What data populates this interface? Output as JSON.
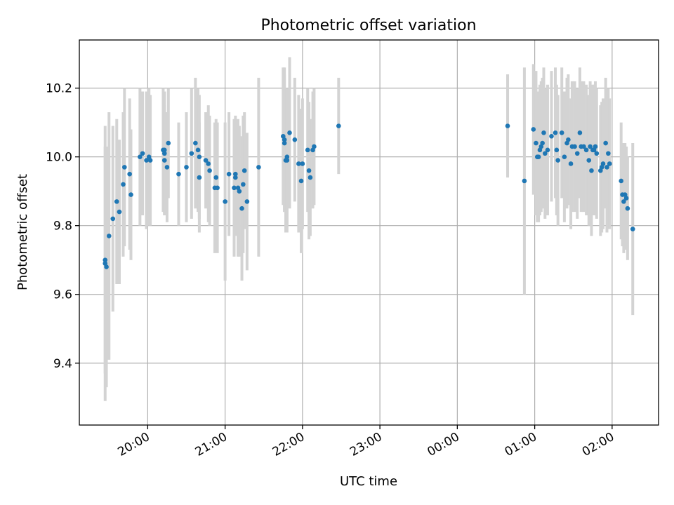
{
  "chart_data": {
    "type": "scatter",
    "title": "Photometric offset variation",
    "xlabel": "UTC time",
    "ylabel": "Photometric offset",
    "x_unit": "UTC",
    "xlim": [
      "19:07",
      "02:36"
    ],
    "ylim": [
      9.22,
      10.34
    ],
    "x_ticks": [
      "20:00",
      "21:00",
      "22:00",
      "23:00",
      "00:00",
      "01:00",
      "02:00"
    ],
    "y_ticks": [
      9.4,
      9.6,
      9.8,
      10.0,
      10.2
    ],
    "grid": true,
    "colors": {
      "marker": "#1f77b4",
      "errorbar": "#d3d3d3"
    },
    "series": [
      {
        "points": [
          {
            "t": "19:27",
            "y": 9.69,
            "err": 0.4
          },
          {
            "t": "19:27",
            "y": 9.7,
            "err": 0.33
          },
          {
            "t": "19:28",
            "y": 9.68,
            "err": 0.35
          },
          {
            "t": "19:30",
            "y": 9.77,
            "err": 0.36
          },
          {
            "t": "19:33",
            "y": 9.82,
            "err": 0.27
          },
          {
            "t": "19:36",
            "y": 9.87,
            "err": 0.24
          },
          {
            "t": "19:38",
            "y": 9.84,
            "err": 0.21
          },
          {
            "t": "19:41",
            "y": 9.92,
            "err": 0.21
          },
          {
            "t": "19:42",
            "y": 9.97,
            "err": 0.23
          },
          {
            "t": "19:46",
            "y": 9.95,
            "err": 0.22
          },
          {
            "t": "19:47",
            "y": 9.89,
            "err": 0.19
          },
          {
            "t": "19:54",
            "y": 10.0,
            "err": 0.2
          },
          {
            "t": "19:56",
            "y": 10.01,
            "err": 0.18
          },
          {
            "t": "19:59",
            "y": 9.99,
            "err": 0.2
          },
          {
            "t": "20:01",
            "y": 10.0,
            "err": 0.2
          },
          {
            "t": "20:02",
            "y": 9.99,
            "err": 0.19
          },
          {
            "t": "20:12",
            "y": 10.02,
            "err": 0.18
          },
          {
            "t": "20:13",
            "y": 9.99,
            "err": 0.16
          },
          {
            "t": "20:13",
            "y": 10.02,
            "err": 0.17
          },
          {
            "t": "20:13",
            "y": 10.01,
            "err": 0.18
          },
          {
            "t": "20:15",
            "y": 9.97,
            "err": 0.16
          },
          {
            "t": "20:16",
            "y": 10.04,
            "err": 0.16
          },
          {
            "t": "20:24",
            "y": 9.95,
            "err": 0.15
          },
          {
            "t": "20:30",
            "y": 9.97,
            "err": 0.16
          },
          {
            "t": "20:34",
            "y": 10.01,
            "err": 0.19
          },
          {
            "t": "20:37",
            "y": 10.04,
            "err": 0.19
          },
          {
            "t": "20:39",
            "y": 10.02,
            "err": 0.18
          },
          {
            "t": "20:40",
            "y": 10.0,
            "err": 0.18
          },
          {
            "t": "20:40",
            "y": 9.94,
            "err": 0.16
          },
          {
            "t": "20:45",
            "y": 9.99,
            "err": 0.14
          },
          {
            "t": "20:47",
            "y": 9.98,
            "err": 0.17
          },
          {
            "t": "20:48",
            "y": 9.96,
            "err": 0.16
          },
          {
            "t": "20:52",
            "y": 9.91,
            "err": 0.19
          },
          {
            "t": "20:53",
            "y": 9.94,
            "err": 0.17
          },
          {
            "t": "20:54",
            "y": 9.91,
            "err": 0.19
          },
          {
            "t": "21:00",
            "y": 9.87,
            "err": 0.23
          },
          {
            "t": "21:03",
            "y": 9.95,
            "err": 0.18
          },
          {
            "t": "21:07",
            "y": 9.91,
            "err": 0.2
          },
          {
            "t": "21:08",
            "y": 9.95,
            "err": 0.17
          },
          {
            "t": "21:08",
            "y": 9.94,
            "err": 0.17
          },
          {
            "t": "21:10",
            "y": 9.91,
            "err": 0.2
          },
          {
            "t": "21:11",
            "y": 9.9,
            "err": 0.19
          },
          {
            "t": "21:13",
            "y": 9.85,
            "err": 0.21
          },
          {
            "t": "21:14",
            "y": 9.92,
            "err": 0.2
          },
          {
            "t": "21:15",
            "y": 9.96,
            "err": 0.17
          },
          {
            "t": "21:17",
            "y": 9.87,
            "err": 0.2
          },
          {
            "t": "21:26",
            "y": 9.97,
            "err": 0.26
          },
          {
            "t": "21:45",
            "y": 10.06,
            "err": 0.2
          },
          {
            "t": "21:46",
            "y": 10.05,
            "err": 0.21
          },
          {
            "t": "21:46",
            "y": 10.04,
            "err": 0.2
          },
          {
            "t": "21:47",
            "y": 9.99,
            "err": 0.21
          },
          {
            "t": "21:48",
            "y": 10.0,
            "err": 0.2
          },
          {
            "t": "21:48",
            "y": 9.99,
            "err": 0.21
          },
          {
            "t": "21:50",
            "y": 10.07,
            "err": 0.22
          },
          {
            "t": "21:54",
            "y": 10.05,
            "err": 0.18
          },
          {
            "t": "21:57",
            "y": 9.98,
            "err": 0.2
          },
          {
            "t": "21:59",
            "y": 9.93,
            "err": 0.21
          },
          {
            "t": "22:00",
            "y": 9.98,
            "err": 0.19
          },
          {
            "t": "22:04",
            "y": 10.02,
            "err": 0.18
          },
          {
            "t": "22:05",
            "y": 9.96,
            "err": 0.2
          },
          {
            "t": "22:06",
            "y": 9.94,
            "err": 0.17
          },
          {
            "t": "22:08",
            "y": 10.02,
            "err": 0.17
          },
          {
            "t": "22:09",
            "y": 10.03,
            "err": 0.17
          },
          {
            "t": "22:28",
            "y": 10.09,
            "err": 0.14
          },
          {
            "t": "00:39",
            "y": 10.09,
            "err": 0.15
          },
          {
            "t": "00:52",
            "y": 9.93,
            "err": 0.33
          },
          {
            "t": "00:59",
            "y": 10.08,
            "err": 0.19
          },
          {
            "t": "01:01",
            "y": 10.04,
            "err": 0.21
          },
          {
            "t": "01:02",
            "y": 10.0,
            "err": 0.19
          },
          {
            "t": "01:03",
            "y": 10.0,
            "err": 0.19
          },
          {
            "t": "01:04",
            "y": 10.02,
            "err": 0.19
          },
          {
            "t": "01:05",
            "y": 10.03,
            "err": 0.19
          },
          {
            "t": "01:06",
            "y": 10.04,
            "err": 0.19
          },
          {
            "t": "01:07",
            "y": 10.07,
            "err": 0.19
          },
          {
            "t": "01:08",
            "y": 10.01,
            "err": 0.19
          },
          {
            "t": "01:10",
            "y": 10.02,
            "err": 0.19
          },
          {
            "t": "01:13",
            "y": 10.06,
            "err": 0.19
          },
          {
            "t": "01:16",
            "y": 10.07,
            "err": 0.19
          },
          {
            "t": "01:17",
            "y": 10.02,
            "err": 0.19
          },
          {
            "t": "01:18",
            "y": 9.99,
            "err": 0.19
          },
          {
            "t": "01:21",
            "y": 10.07,
            "err": 0.19
          },
          {
            "t": "01:23",
            "y": 10.0,
            "err": 0.19
          },
          {
            "t": "01:25",
            "y": 10.04,
            "err": 0.19
          },
          {
            "t": "01:26",
            "y": 10.05,
            "err": 0.19
          },
          {
            "t": "01:28",
            "y": 9.98,
            "err": 0.19
          },
          {
            "t": "01:29",
            "y": 10.03,
            "err": 0.19
          },
          {
            "t": "01:31",
            "y": 10.03,
            "err": 0.19
          },
          {
            "t": "01:33",
            "y": 10.01,
            "err": 0.19
          },
          {
            "t": "01:35",
            "y": 10.07,
            "err": 0.19
          },
          {
            "t": "01:36",
            "y": 10.03,
            "err": 0.19
          },
          {
            "t": "01:38",
            "y": 10.03,
            "err": 0.19
          },
          {
            "t": "01:40",
            "y": 10.02,
            "err": 0.19
          },
          {
            "t": "01:42",
            "y": 9.99,
            "err": 0.19
          },
          {
            "t": "01:43",
            "y": 10.03,
            "err": 0.19
          },
          {
            "t": "01:44",
            "y": 9.96,
            "err": 0.19
          },
          {
            "t": "01:45",
            "y": 10.02,
            "err": 0.19
          },
          {
            "t": "01:46",
            "y": 10.02,
            "err": 0.19
          },
          {
            "t": "01:47",
            "y": 10.03,
            "err": 0.19
          },
          {
            "t": "01:48",
            "y": 10.01,
            "err": 0.19
          },
          {
            "t": "01:51",
            "y": 9.96,
            "err": 0.19
          },
          {
            "t": "01:52",
            "y": 9.97,
            "err": 0.19
          },
          {
            "t": "01:53",
            "y": 9.98,
            "err": 0.19
          },
          {
            "t": "01:55",
            "y": 10.04,
            "err": 0.19
          },
          {
            "t": "01:56",
            "y": 9.97,
            "err": 0.19
          },
          {
            "t": "01:57",
            "y": 10.01,
            "err": 0.19
          },
          {
            "t": "01:58",
            "y": 9.98,
            "err": 0.19
          },
          {
            "t": "02:07",
            "y": 9.93,
            "err": 0.17
          },
          {
            "t": "02:08",
            "y": 9.89,
            "err": 0.15
          },
          {
            "t": "02:09",
            "y": 9.87,
            "err": 0.15
          },
          {
            "t": "02:10",
            "y": 9.89,
            "err": 0.15
          },
          {
            "t": "02:11",
            "y": 9.88,
            "err": 0.15
          },
          {
            "t": "02:12",
            "y": 9.85,
            "err": 0.15
          },
          {
            "t": "02:16",
            "y": 9.79,
            "err": 0.25
          }
        ]
      }
    ]
  }
}
